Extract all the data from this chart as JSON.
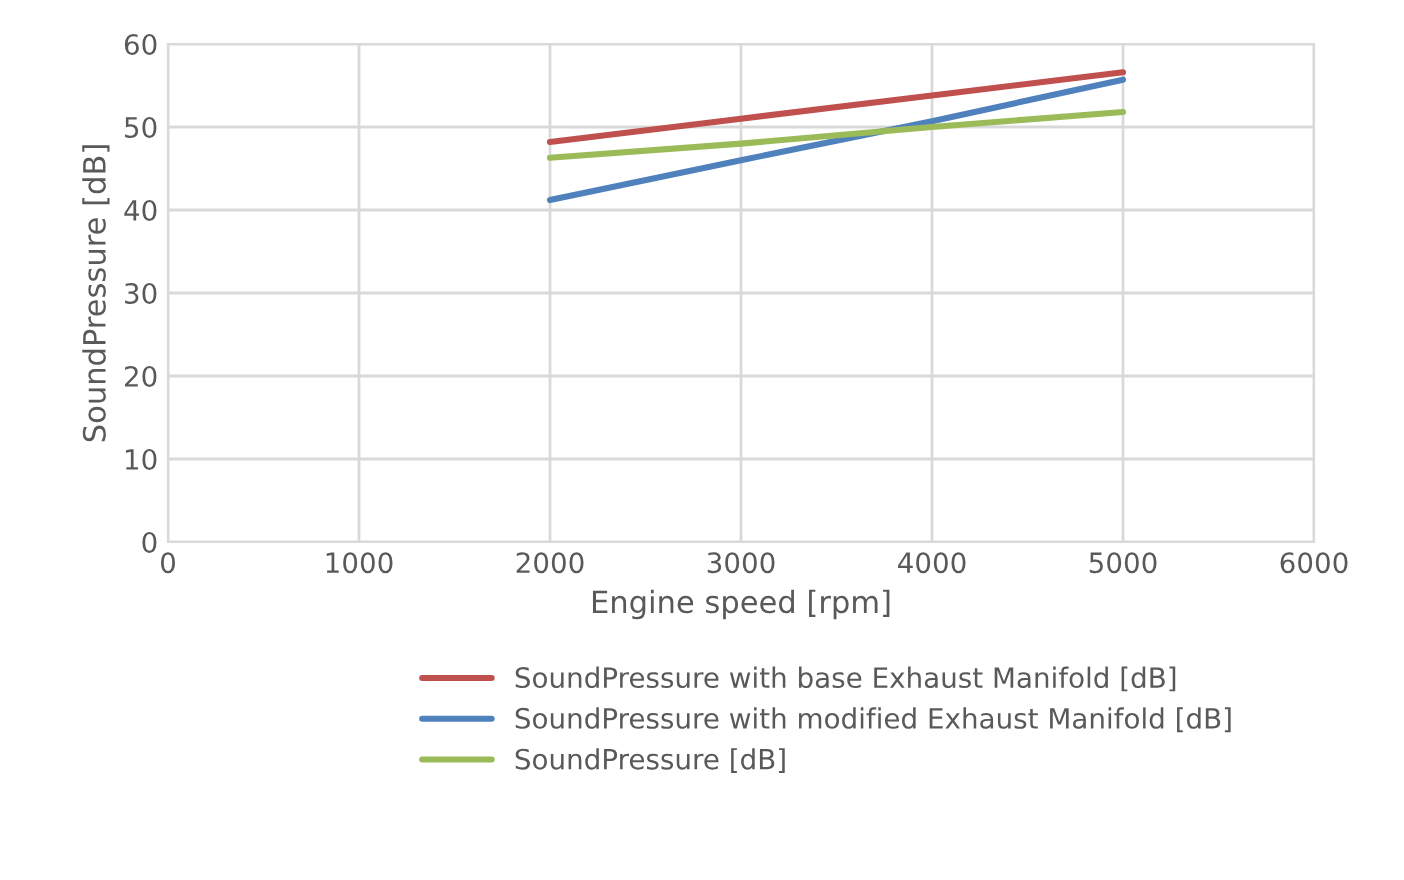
{
  "chart_data": {
    "type": "line",
    "xlabel": "Engine speed [rpm]",
    "ylabel": "SoundPressure [dB]",
    "x": [
      2000,
      3000,
      4000,
      5000
    ],
    "series": [
      {
        "name": "SoundPressure with base Exhaust Manifold [dB]",
        "color": "#c0504d",
        "values": [
          48.2,
          51.0,
          53.8,
          56.6
        ]
      },
      {
        "name": "SoundPressure with modified Exhaust Manifold [dB]",
        "color": "#4f81bd",
        "values": [
          41.2,
          46.0,
          50.7,
          55.7
        ]
      },
      {
        "name": "SoundPressure [dB]",
        "color": "#9bbb59",
        "values": [
          46.3,
          48.0,
          50.0,
          51.8
        ]
      }
    ],
    "xlim": [
      0,
      6000
    ],
    "xticks": [
      0,
      1000,
      2000,
      3000,
      4000,
      5000,
      6000
    ],
    "ylim": [
      0,
      60
    ],
    "yticks": [
      0,
      10,
      20,
      30,
      40,
      50,
      60
    ],
    "grid": true,
    "legend": "bottom",
    "marker": "none",
    "line_style": "solid"
  }
}
